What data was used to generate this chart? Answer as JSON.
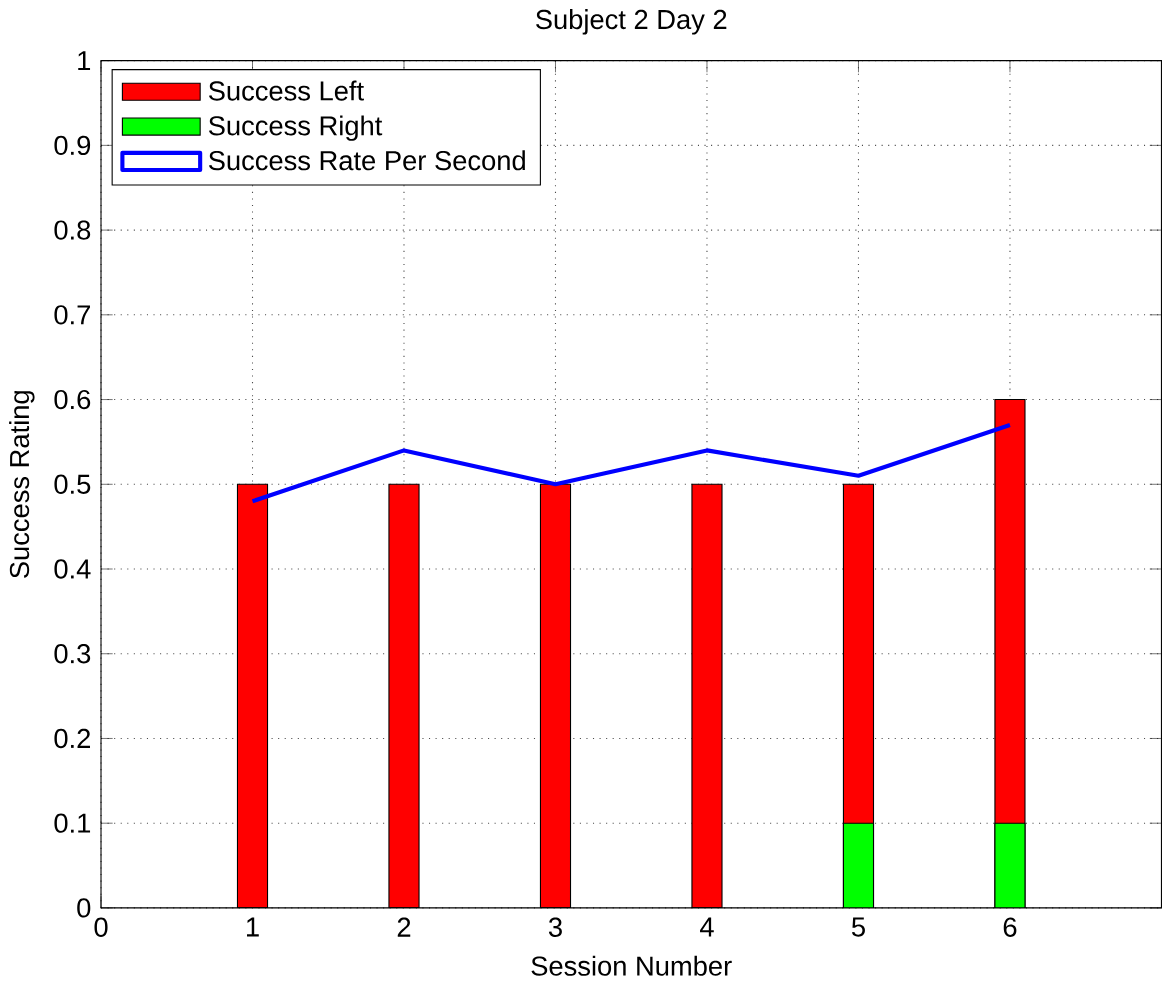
{
  "chart_data": {
    "type": "bar",
    "title": "Subject 2 Day 2",
    "xlabel": "Session Number",
    "ylabel": "Success Rating",
    "x": [
      1,
      2,
      3,
      4,
      5,
      6
    ],
    "series": [
      {
        "name": "Success Left",
        "color": "#ff0000",
        "values": [
          0.5,
          0.5,
          0.5,
          0.5,
          0.5,
          0.6
        ]
      },
      {
        "name": "Success Right",
        "color": "#00ff00",
        "values": [
          0,
          0,
          0,
          0,
          0.1,
          0.1
        ]
      },
      {
        "name": "Success Rate Per Second",
        "type": "line",
        "color": "#0000ff",
        "values": [
          0.48,
          0.54,
          0.5,
          0.54,
          0.51,
          0.57
        ]
      }
    ],
    "xlim": [
      0,
      7
    ],
    "xticks": [
      0,
      1,
      2,
      3,
      4,
      5,
      6
    ],
    "ylim": [
      0,
      1
    ],
    "yticks": [
      0,
      0.1,
      0.2,
      0.3,
      0.4,
      0.5,
      0.6,
      0.7,
      0.8,
      0.9,
      1
    ],
    "grid": true,
    "legend": "top left",
    "line_style": "solid",
    "marker": "none"
  }
}
